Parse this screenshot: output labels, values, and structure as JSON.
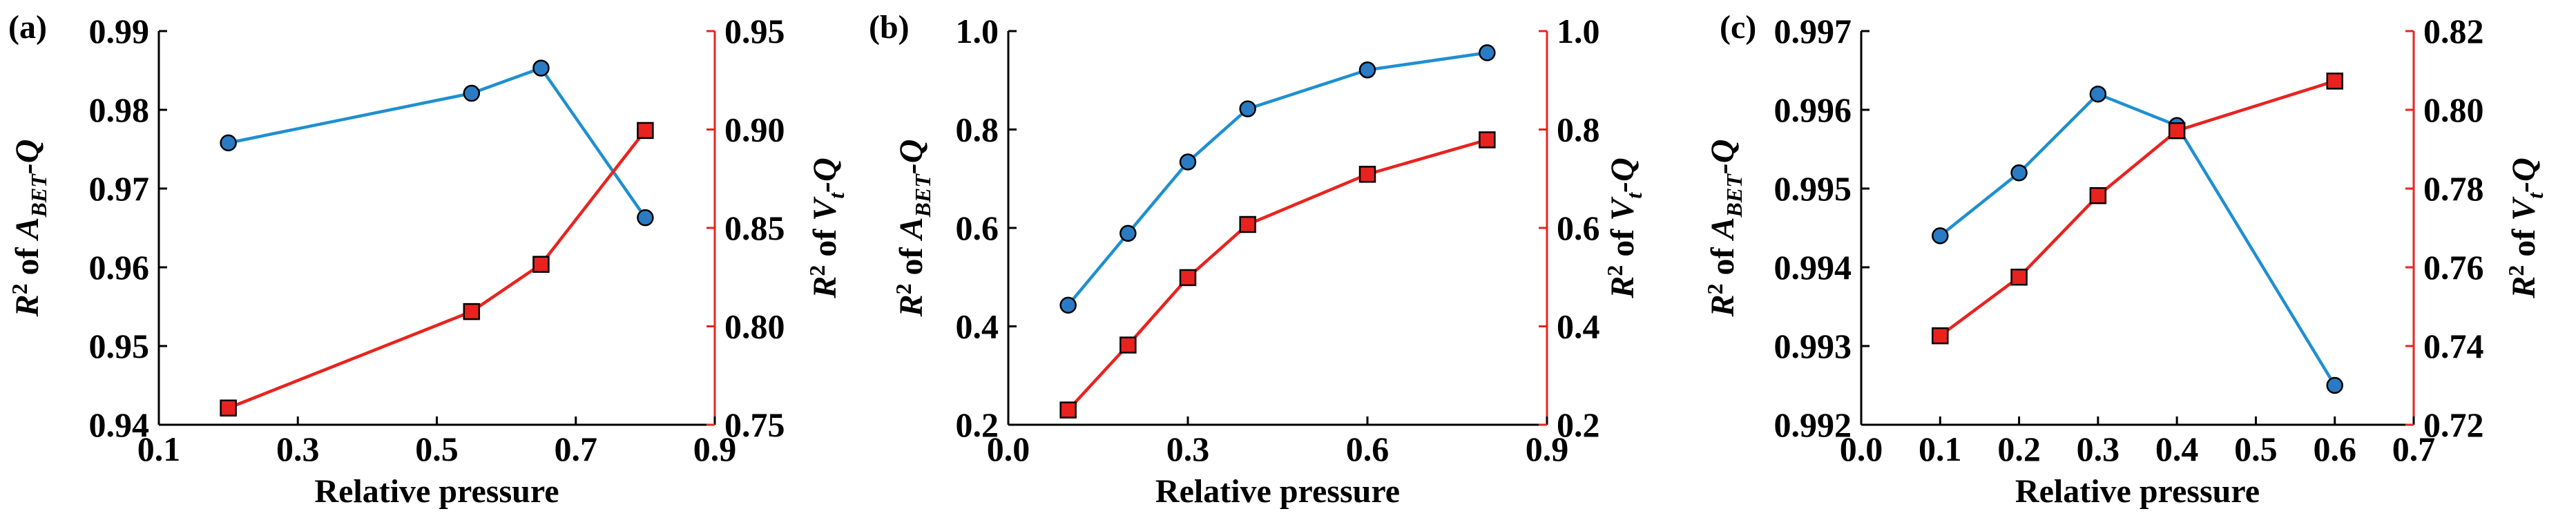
{
  "figure": {
    "panel_labels": [
      "(a)",
      "(b)",
      "(c)"
    ]
  },
  "colors": {
    "left_series": "#1f8fd0",
    "left_marker": "#2b7bc4",
    "right_series": "#e8231f",
    "right_axis": "#e8231f",
    "marker_edge": "#000000",
    "axis": "#000000"
  },
  "chart_data": [
    {
      "type": "line",
      "panel_label": "(a)",
      "xlabel": "Relative pressure",
      "ylabel_left": "R² of A_BET-Q",
      "ylabel_right": "R² of V_t-Q",
      "xlim": [
        0.1,
        0.9
      ],
      "xticks": [
        "0.1",
        "0.3",
        "0.5",
        "0.7",
        "0.9"
      ],
      "ylim_left": [
        0.94,
        0.99
      ],
      "yticks_left": [
        "0.94",
        "0.95",
        "0.96",
        "0.97",
        "0.98",
        "0.99"
      ],
      "ylim_right": [
        0.75,
        0.95
      ],
      "yticks_right": [
        "0.75",
        "0.80",
        "0.85",
        "0.90",
        "0.95"
      ],
      "series": [
        {
          "name": "R² of A_BET-Q",
          "axis": "left",
          "marker": "circle",
          "x": [
            0.2,
            0.55,
            0.65,
            0.8
          ],
          "values": [
            0.9758,
            0.9821,
            0.9853,
            0.9663
          ]
        },
        {
          "name": "R² of V_t-Q",
          "axis": "right",
          "marker": "square",
          "x": [
            0.2,
            0.55,
            0.65,
            0.8
          ],
          "values": [
            0.7585,
            0.8075,
            0.8315,
            0.8995
          ]
        }
      ]
    },
    {
      "type": "line",
      "panel_label": "(b)",
      "xlabel": "Relative pressure",
      "ylabel_left": "R² of A_BET-Q",
      "ylabel_right": "R² of V_t-Q",
      "xlim": [
        0.0,
        0.9
      ],
      "xticks": [
        "0.0",
        "0.3",
        "0.6",
        "0.9"
      ],
      "ylim_left": [
        0.2,
        1.0
      ],
      "yticks_left": [
        "0.2",
        "0.4",
        "0.6",
        "0.8",
        "1.0"
      ],
      "ylim_right": [
        0.2,
        1.0
      ],
      "yticks_right": [
        "0.2",
        "0.4",
        "0.6",
        "0.8",
        "1.0"
      ],
      "series": [
        {
          "name": "R² of A_BET-Q",
          "axis": "left",
          "marker": "circle",
          "x": [
            0.1,
            0.2,
            0.3,
            0.4,
            0.6,
            0.8
          ],
          "values": [
            0.443,
            0.589,
            0.734,
            0.842,
            0.921,
            0.956
          ]
        },
        {
          "name": "R² of V_t-Q",
          "axis": "right",
          "marker": "square",
          "x": [
            0.1,
            0.2,
            0.3,
            0.4,
            0.6,
            0.8
          ],
          "values": [
            0.23,
            0.362,
            0.499,
            0.607,
            0.709,
            0.779
          ]
        }
      ]
    },
    {
      "type": "line",
      "panel_label": "(c)",
      "xlabel": "Relative pressure",
      "ylabel_left": "R² of A_BET-Q",
      "ylabel_right": "R² of V_t-Q",
      "xlim": [
        0.0,
        0.7
      ],
      "xticks": [
        "0.0",
        "0.1",
        "0.2",
        "0.3",
        "0.4",
        "0.5",
        "0.6",
        "0.7"
      ],
      "ylim_left": [
        0.992,
        0.997
      ],
      "yticks_left": [
        "0.992",
        "0.993",
        "0.994",
        "0.995",
        "0.996",
        "0.997"
      ],
      "ylim_right": [
        0.72,
        0.82
      ],
      "yticks_right": [
        "0.72",
        "0.74",
        "0.76",
        "0.78",
        "0.80",
        "0.82"
      ],
      "series": [
        {
          "name": "R² of A_BET-Q",
          "axis": "left",
          "marker": "circle",
          "x": [
            0.1,
            0.2,
            0.3,
            0.4,
            0.6
          ],
          "values": [
            0.9944,
            0.9952,
            0.9962,
            0.9958,
            0.9925
          ]
        },
        {
          "name": "R² of V_t-Q",
          "axis": "right",
          "marker": "square",
          "x": [
            0.1,
            0.2,
            0.3,
            0.4,
            0.6
          ],
          "values": [
            0.7426,
            0.7575,
            0.7782,
            0.7947,
            0.8073
          ]
        }
      ]
    }
  ]
}
